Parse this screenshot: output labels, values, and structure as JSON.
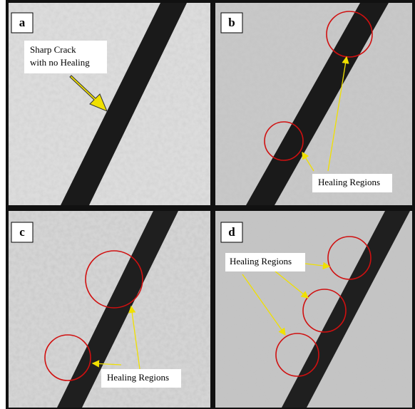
{
  "panels": [
    {
      "label": "a",
      "annotation": [
        "Sharp Crack",
        "with no Healing"
      ]
    },
    {
      "label": "b",
      "annotation": [
        "Healing Regions"
      ]
    },
    {
      "label": "c",
      "annotation": [
        "Healing Regions"
      ]
    },
    {
      "label": "d",
      "annotation": [
        "Healing Regions"
      ]
    }
  ]
}
